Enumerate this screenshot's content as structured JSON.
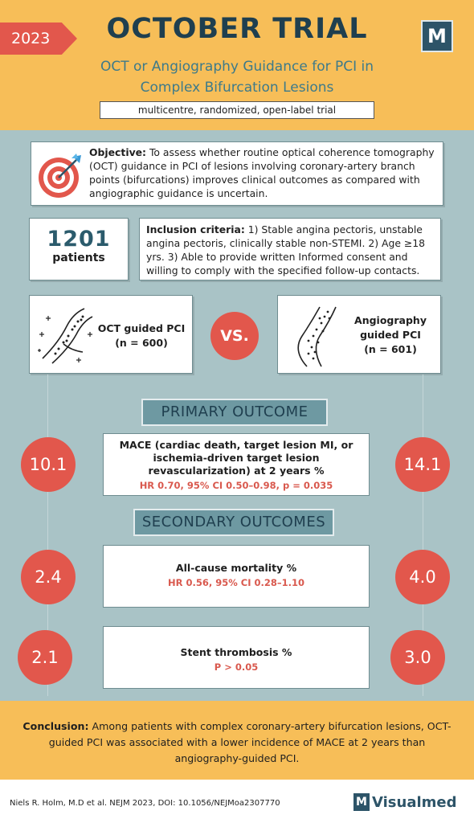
{
  "header": {
    "year": "2023",
    "title": "OCTOBER TRIAL",
    "subtitle_line1": "OCT or Angiography Guidance for PCI in",
    "subtitle_line2": "Complex Bifurcation Lesions",
    "logo_letter": "M",
    "design": "multicentre, randomized, open-label trial"
  },
  "objective": {
    "label": "Objective:",
    "text": " To assess whether routine optical coherence tomography (OCT) guidance in PCI of lesions involving coronary-artery branch points (bifurcations) improves clinical outcomes as compared with angiographic guidance is uncertain.",
    "icon": "target-icon"
  },
  "patients": {
    "count": "1201",
    "label": "patients"
  },
  "inclusion": {
    "label": "Inclusion criteria:",
    "text": " 1) Stable angina pectoris, unstable angina pectoris, clinically stable non-STEMI. 2) Age ≥18 yrs. 3) Able to provide written Informed consent and willing to comply with the specified follow-up contacts."
  },
  "arms": {
    "oct": {
      "name": "OCT guided PCI",
      "n": "(n = 600)",
      "icon": "oct-vessel-icon"
    },
    "vs": "VS.",
    "angio": {
      "name_line1": "Angiography",
      "name_line2": "guided PCI",
      "n": "(n = 601)",
      "icon": "angiography-vessel-icon"
    }
  },
  "primary": {
    "heading": "PRIMARY OUTCOME",
    "oct_value": "10.1",
    "angio_value": "14.1",
    "title": "MACE (cardiac death, target lesion MI, or ischemia-driven target lesion revascularization) at 2 years  %",
    "stats": "HR 0.70, 95% CI 0.50–0.98, p = 0.035"
  },
  "secondary": {
    "heading": "SECONDARY OUTCOMES",
    "items": [
      {
        "oct_value": "2.4",
        "angio_value": "4.0",
        "title": "All-cause mortality %",
        "stats": "HR 0.56, 95% CI 0.28–1.10"
      },
      {
        "oct_value": "2.1",
        "angio_value": "3.0",
        "title": "Stent thrombosis %",
        "stats": "P > 0.05"
      }
    ]
  },
  "conclusion": {
    "label": "Conclusion:",
    "text": " Among patients with complex coronary-artery bifurcation lesions, OCT-guided PCI was associated with a lower incidence of MACE at 2 years than angiography-guided PCI."
  },
  "footer": {
    "citation": "Niels R. Holm, M.D et al.  NEJM 2023, DOI: 10.1056/NEJMoa2307770",
    "brand_letter": "M",
    "brand_name": "Visualmed"
  },
  "colors": {
    "accent_red": "#e2574c",
    "header_yellow": "#f7be58",
    "background": "#a9c3c6",
    "navy": "#2d5468"
  }
}
